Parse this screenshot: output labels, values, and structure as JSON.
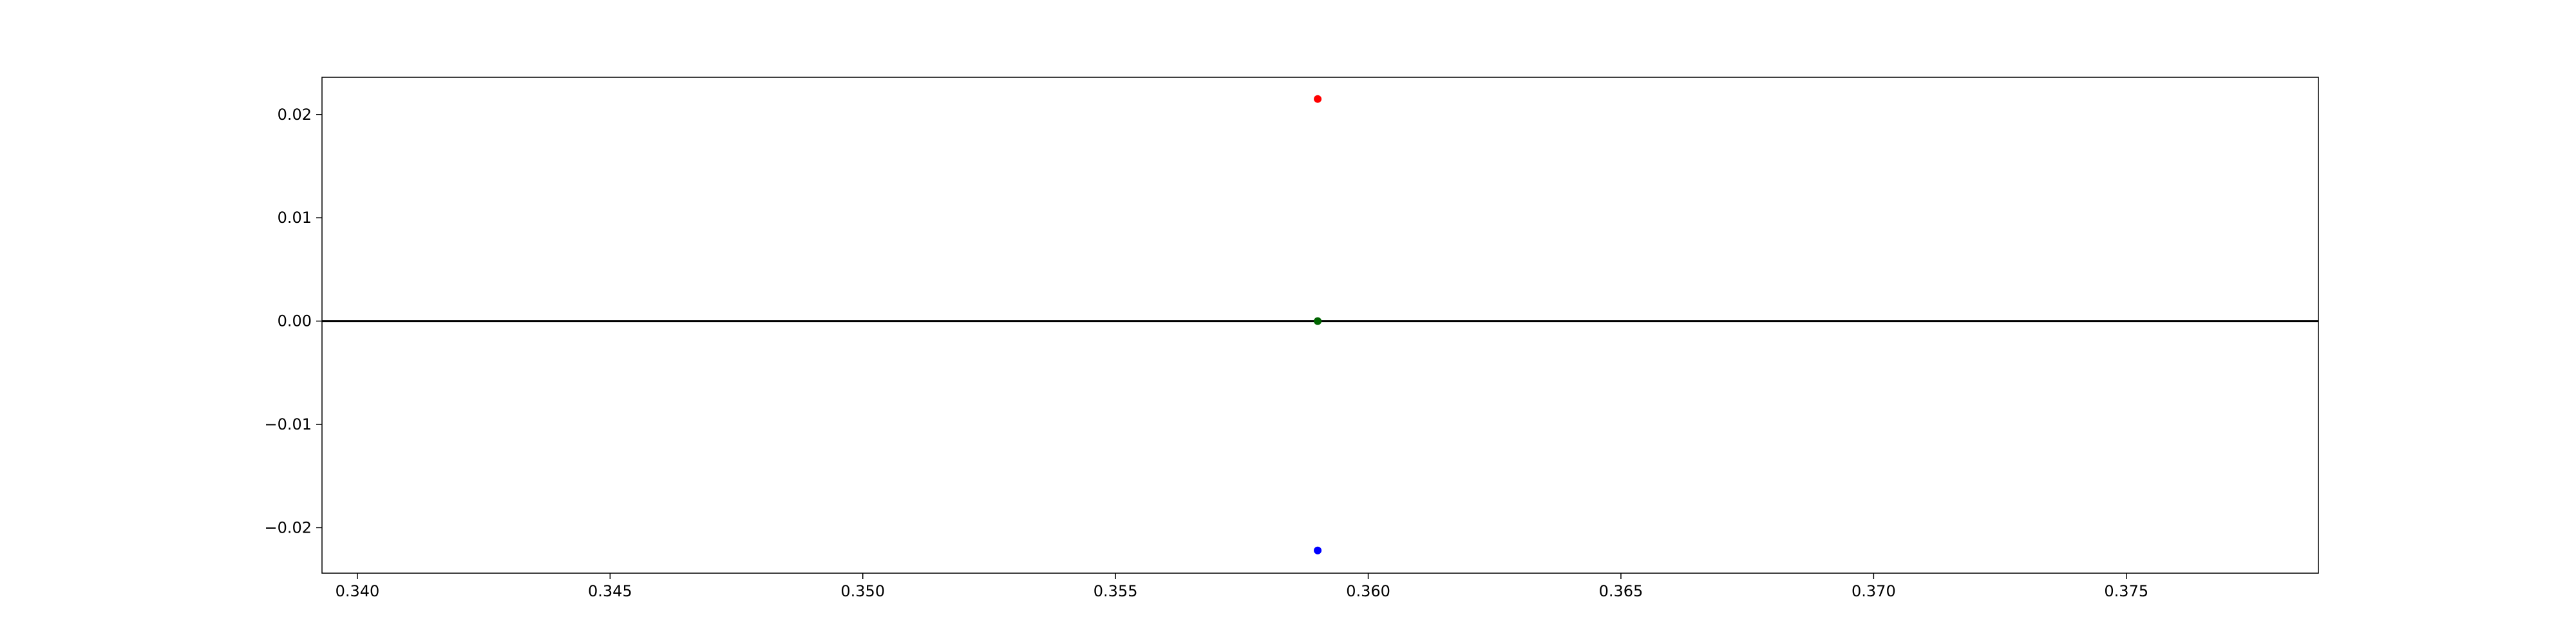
{
  "chart_data": {
    "type": "scatter",
    "title": "",
    "xlabel": "",
    "ylabel": "",
    "xlim": [
      0.3393,
      0.3788
    ],
    "ylim": [
      -0.0244,
      0.0236
    ],
    "grid": false,
    "x_ticks": [
      {
        "value": 0.34,
        "label": "0.340"
      },
      {
        "value": 0.345,
        "label": "0.345"
      },
      {
        "value": 0.35,
        "label": "0.350"
      },
      {
        "value": 0.355,
        "label": "0.355"
      },
      {
        "value": 0.36,
        "label": "0.360"
      },
      {
        "value": 0.365,
        "label": "0.365"
      },
      {
        "value": 0.37,
        "label": "0.370"
      },
      {
        "value": 0.375,
        "label": "0.375"
      }
    ],
    "y_ticks": [
      {
        "value": 0.02,
        "label": "0.02"
      },
      {
        "value": 0.01,
        "label": "0.01"
      },
      {
        "value": 0.0,
        "label": "0.00"
      },
      {
        "value": -0.01,
        "label": "−0.01"
      },
      {
        "value": -0.02,
        "label": "−0.02"
      }
    ],
    "reference_lines": [
      {
        "orientation": "horizontal",
        "y": 0.0,
        "color": "#000000"
      }
    ],
    "points": [
      {
        "x": 0.359,
        "y": 0.0215,
        "color": "#ff0000"
      },
      {
        "x": 0.359,
        "y": 0.0,
        "color": "#006400"
      },
      {
        "x": 0.359,
        "y": -0.0222,
        "color": "#0000ff"
      }
    ]
  }
}
